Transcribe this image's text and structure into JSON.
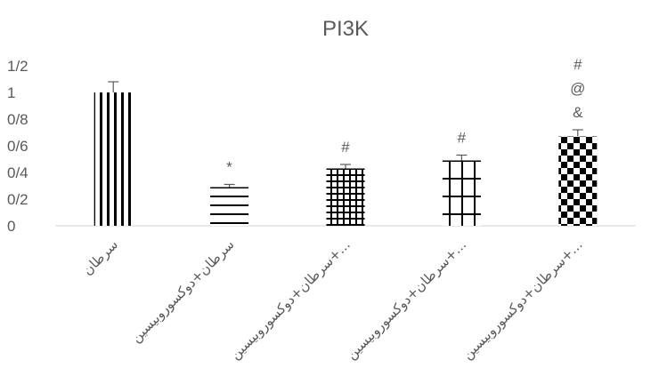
{
  "chart_data": {
    "type": "bar",
    "title": "PI3K",
    "xlabel": "",
    "ylabel": "",
    "ylim": [
      0,
      1.2
    ],
    "y_ticks": [
      0,
      0.2,
      0.4,
      0.6,
      0.8,
      1.0,
      1.2
    ],
    "y_tick_labels": [
      "0",
      "0/2",
      "0/4",
      "0/6",
      "0/8",
      "1",
      "1/2"
    ],
    "grid": false,
    "legend": "none",
    "categories": [
      "سرطان",
      "سرطان+دوکسوروبیسین",
      "سرطان+دوکسوروبیسین+...",
      "سرطان+دوکسوروبیسین+...",
      "سرطان+دوکسوروبیسین+..."
    ],
    "values": [
      1.0,
      0.29,
      0.43,
      0.49,
      0.67
    ],
    "errors": [
      0.08,
      0.02,
      0.03,
      0.04,
      0.05
    ],
    "patterns": [
      "vertical-lines",
      "horizontal-lines",
      "fine-grid",
      "coarse-grid",
      "checkerboard"
    ],
    "annotations": [
      [],
      [
        "*"
      ],
      [
        "#"
      ],
      [
        "#"
      ],
      [
        "&",
        "@",
        "#"
      ]
    ],
    "colors": {
      "bar_pattern": "#000000",
      "axis": "#d9d9d9",
      "text": "#595959",
      "error_bar": "#595959"
    }
  }
}
